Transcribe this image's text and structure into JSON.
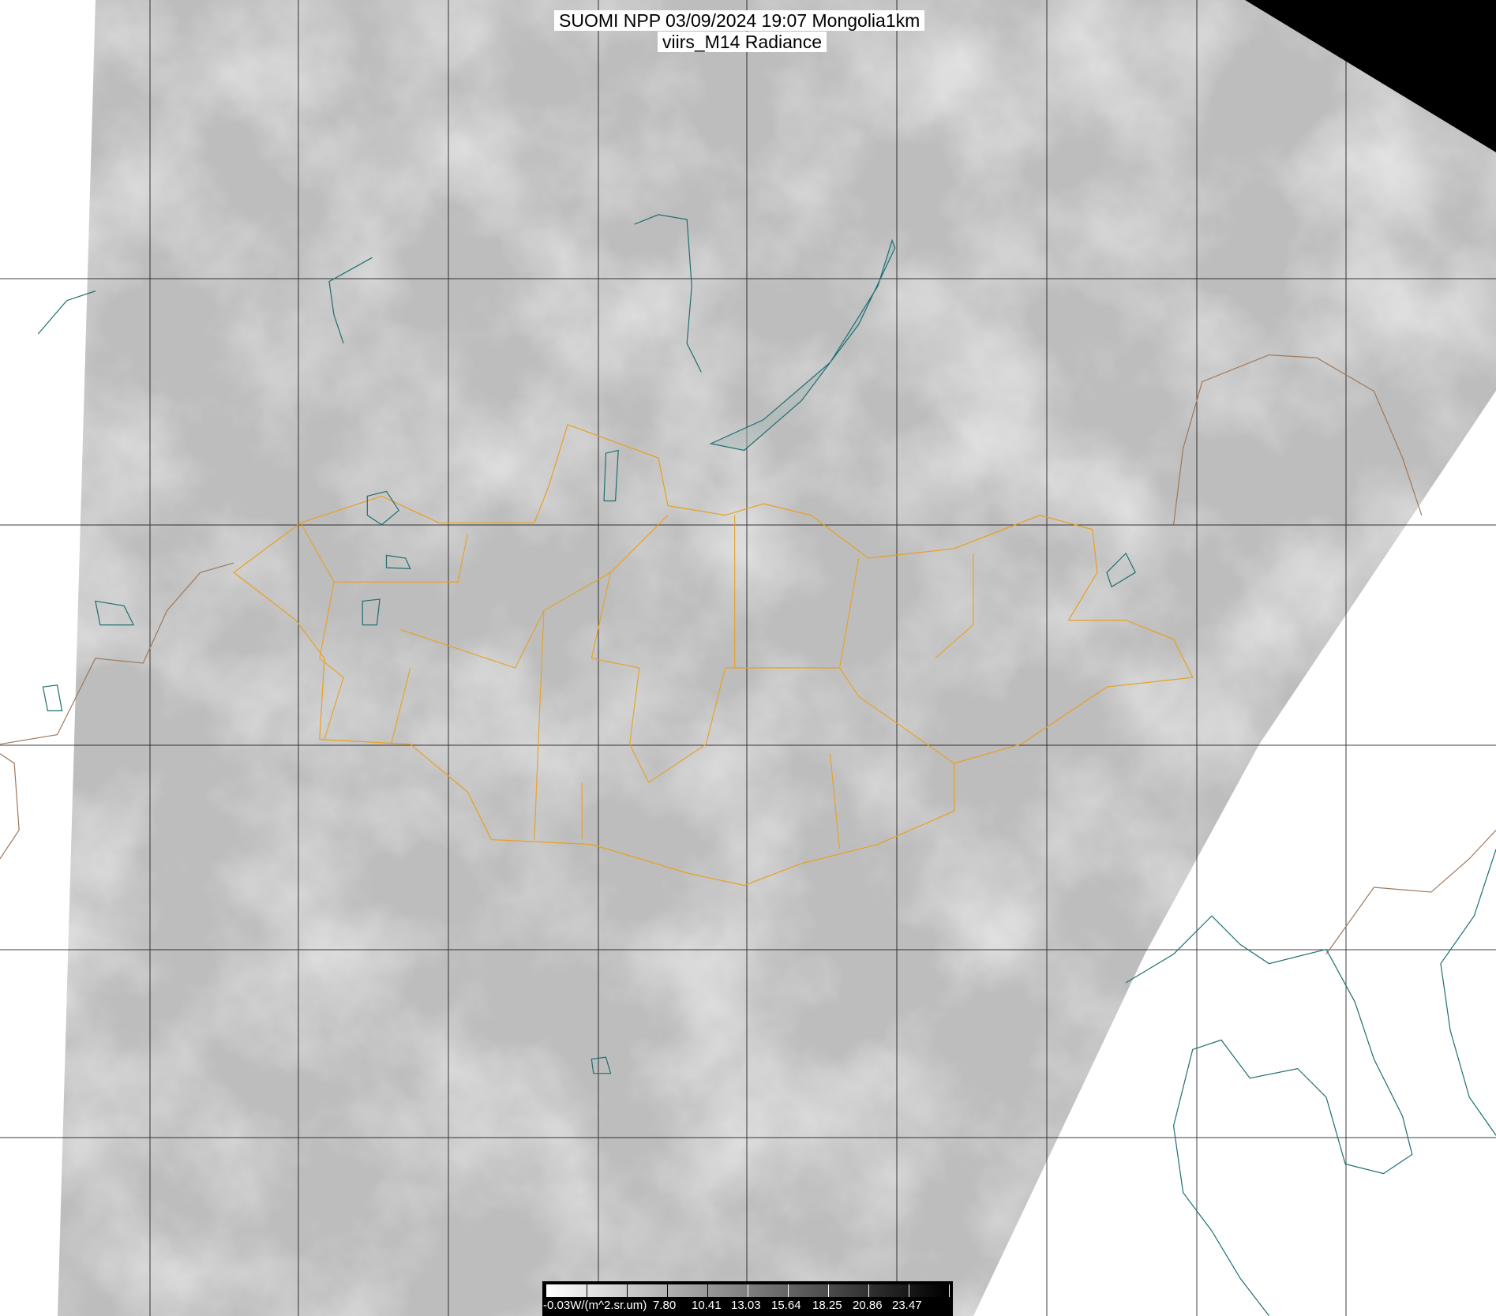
{
  "title": {
    "line1": "SUOMI NPP 03/09/2024 19:07 Mongolia1km",
    "line2": "viirs_M14 Radiance"
  },
  "colorbar": {
    "unit_label": "-0.03W/(m^2.sr.um)",
    "tick_labels": [
      "7.80",
      "10.41",
      "13.03",
      "15.64",
      "18.25",
      "20.86",
      "23.47"
    ],
    "min": -0.03,
    "colormap": "white-to-black grayscale"
  },
  "map": {
    "imagery": "satellite infrared radiance swath",
    "colors": {
      "background": "#ffffff",
      "swath": "#bdbdbd",
      "cloud": "#e6e6e6",
      "no_data": "#000000",
      "grid": "#000000",
      "mongolia_borders": "#e8a020",
      "country_borders": "#a0785a",
      "coast_lakes": "#1f6f6f"
    }
  }
}
